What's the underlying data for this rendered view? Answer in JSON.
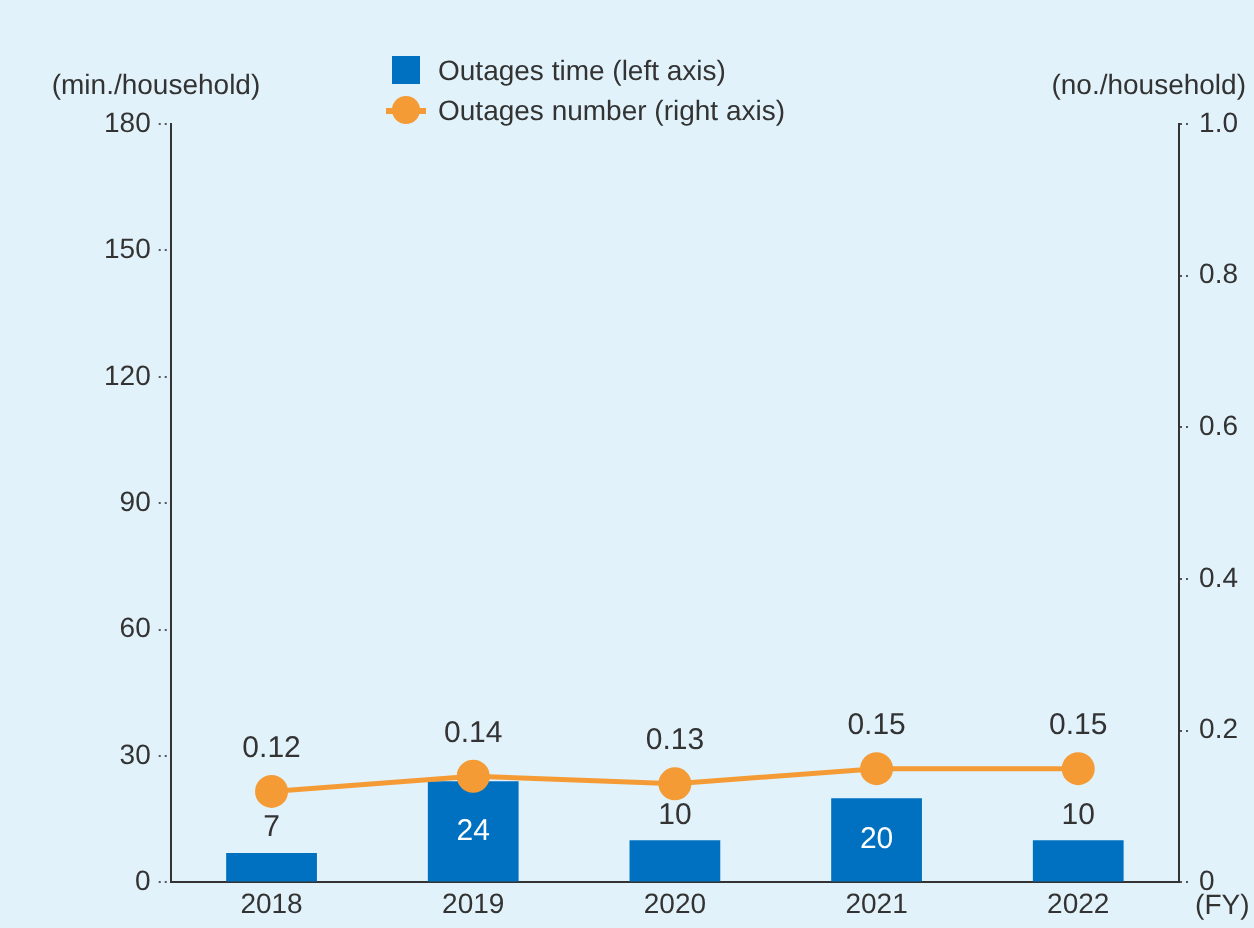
{
  "chart_data": {
    "type": "bar",
    "categories": [
      "2018",
      "2019",
      "2020",
      "2021",
      "2022"
    ],
    "xlabel": "(FY)",
    "ylabel": "(min./household)",
    "y2label": "(no./household)",
    "ylim": [
      0,
      180
    ],
    "yticks": [
      0,
      30,
      60,
      90,
      120,
      150,
      180
    ],
    "y2lim": [
      0,
      1
    ],
    "y2ticks": [
      0,
      0.2,
      0.4,
      0.6,
      0.8,
      {
        "value": 1,
        "label": "1.0"
      }
    ],
    "grid": false,
    "legend": "top",
    "data_labels": true,
    "marker": "circle",
    "series": [
      {
        "name": "Outages time (left axis)",
        "color": "#0070c0",
        "values": [
          7,
          24,
          10,
          20,
          10
        ]
      },
      {
        "name": "Outages number (right axis)",
        "type": "line",
        "axis": "y2",
        "color": "#f59b36",
        "values": [
          0.12,
          0.14,
          0.13,
          0.15,
          0.15
        ]
      }
    ]
  }
}
